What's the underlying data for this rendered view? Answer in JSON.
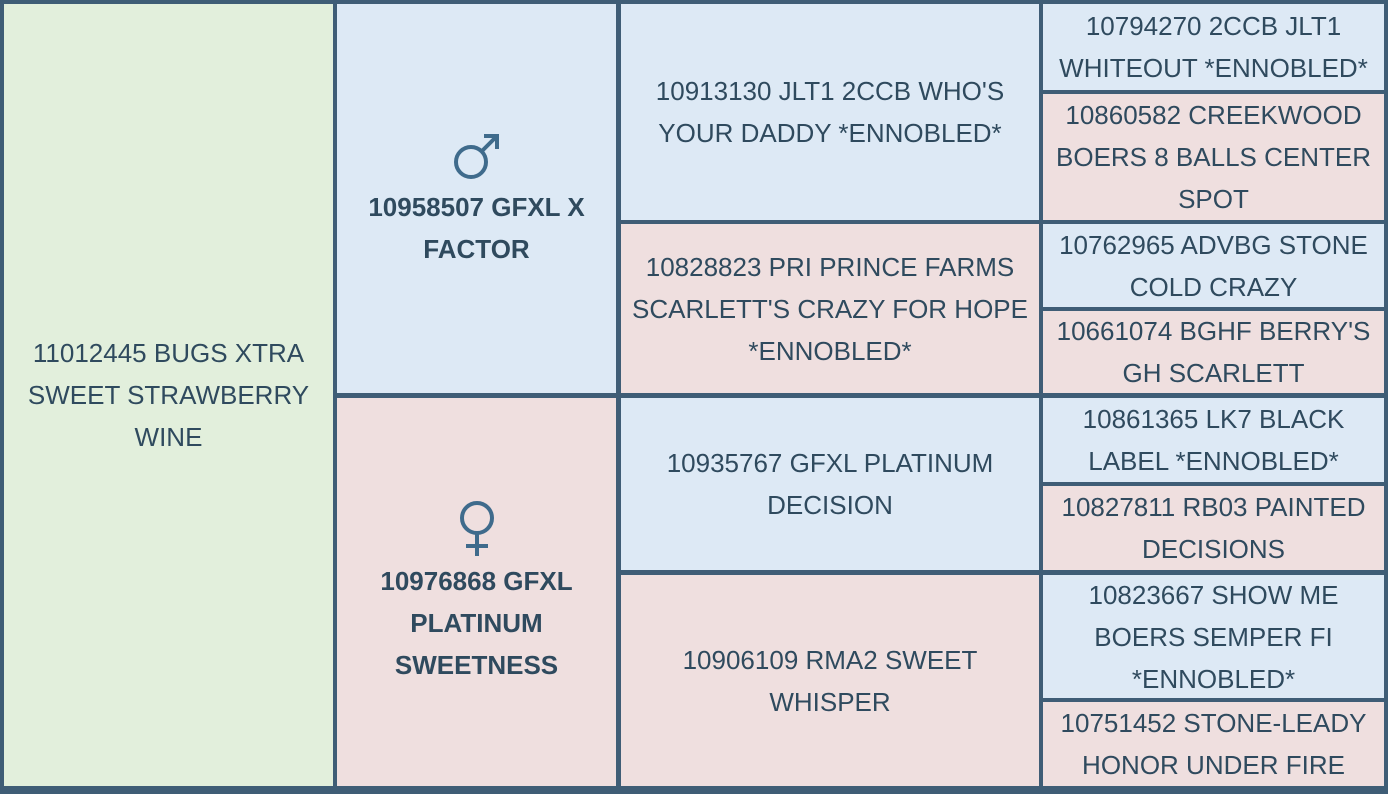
{
  "subject": {
    "name": "11012445 BUGS XTRA SWEET STRAWBERRY WINE"
  },
  "sire": {
    "name": "10958507 GFXL X FACTOR",
    "sire": {
      "name": "10913130 JLT1 2CCB WHO'S YOUR DADDY *ENNOBLED*",
      "sire": "10794270 2CCB JLT1 WHITEOUT *ENNOBLED*",
      "dam": "10860582 CREEKWOOD BOERS 8 BALLS CENTER SPOT"
    },
    "dam": {
      "name": "10828823 PRI PRINCE FARMS SCARLETT'S CRAZY FOR HOPE *ENNOBLED*",
      "sire": "10762965 ADVBG STONE COLD CRAZY",
      "dam": "10661074 BGHF BERRY'S GH SCARLETT"
    }
  },
  "dam": {
    "name": "10976868 GFXL PLATINUM SWEETNESS",
    "sire": {
      "name": "10935767 GFXL PLATINUM DECISION",
      "sire": "10861365 LK7 BLACK LABEL *ENNOBLED*",
      "dam": "10827811 RB03 PAINTED DECISIONS"
    },
    "dam": {
      "name": "10906109 RMA2 SWEET WHISPER",
      "sire": "10823667 SHOW ME BOERS SEMPER FI *ENNOBLED*",
      "dam": "10751452 STONE-LEADY HONOR UNDER FIRE"
    }
  }
}
